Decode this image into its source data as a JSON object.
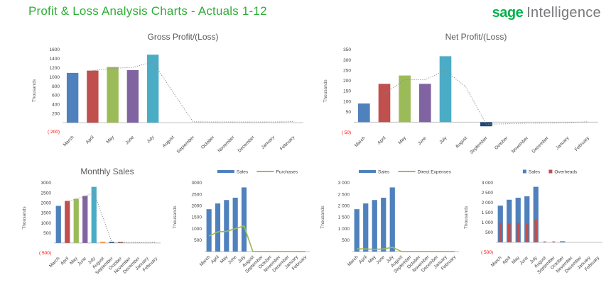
{
  "header": {
    "title": "Profit & Loss Analysis Charts - Actuals 1-12",
    "brand_bold": "sage",
    "brand_light": "Intelligence"
  },
  "colors": {
    "title_green": "#2ead36",
    "logo_green": "#00b14a",
    "logo_gray": "#77787b",
    "axis_line": "#bfbfbf",
    "tick_text": "#404040",
    "negative_text": "#ff0000",
    "trend_dotted": "#8c8c8c"
  },
  "chart_data": [
    {
      "id": "gross-profit-loss",
      "type": "bar",
      "title": "Gross Profit/(Loss)",
      "ylabel": "Thousands",
      "ylim": [
        -200,
        1600
      ],
      "categories": [
        "March",
        "April",
        "May",
        "June",
        "July",
        "August",
        "September",
        "October",
        "November",
        "December",
        "January",
        "February"
      ],
      "y_ticks": [
        [
          200,
          "200"
        ],
        [
          400,
          "400"
        ],
        [
          600,
          "600"
        ],
        [
          800,
          "800"
        ],
        [
          1000,
          "1000"
        ],
        [
          1200,
          "1200"
        ],
        [
          1400,
          "1400"
        ],
        [
          1600,
          "1600"
        ]
      ],
      "y_neg": [
        -200,
        "( 200)"
      ],
      "bar_series": [
        {
          "name": "Gross Profit",
          "colors": [
            "#4F81BD",
            "#C0504D",
            "#9BBB59",
            "#8064A2",
            "#4BACC6"
          ],
          "values": [
            1090,
            1140,
            1220,
            1150,
            1490,
            null,
            null,
            null,
            null,
            null,
            null,
            null
          ]
        }
      ],
      "line_series": [
        {
          "name": "Trend",
          "color": "#8c8c8c",
          "style": "dotted",
          "values": [
            null,
            1140,
            1190,
            1210,
            1330,
            670,
            20,
            15,
            15,
            15,
            15,
            25
          ]
        }
      ],
      "legend": null
    },
    {
      "id": "net-profit-loss",
      "type": "bar",
      "title": "Net Profit/(Loss)",
      "ylabel": "Thousands",
      "ylim": [
        -50,
        350
      ],
      "categories": [
        "March",
        "April",
        "May",
        "June",
        "July",
        "August",
        "September",
        "October",
        "November",
        "December",
        "January",
        "February"
      ],
      "y_ticks": [
        [
          50,
          "50"
        ],
        [
          100,
          "100"
        ],
        [
          150,
          "150"
        ],
        [
          200,
          "200"
        ],
        [
          250,
          "250"
        ],
        [
          300,
          "300"
        ],
        [
          350,
          "350"
        ]
      ],
      "y_neg": [
        -50,
        "( 50)"
      ],
      "bar_series": [
        {
          "name": "Net Profit",
          "colors": [
            "#4F81BD",
            "#C0504D",
            "#9BBB59",
            "#8064A2",
            "#4BACC6",
            null,
            "#1F497D"
          ],
          "values": [
            90,
            185,
            225,
            185,
            318,
            null,
            -20,
            null,
            null,
            null,
            null,
            null
          ]
        }
      ],
      "line_series": [
        {
          "name": "Trend",
          "color": "#8c8c8c",
          "style": "dotted",
          "values": [
            null,
            135,
            205,
            205,
            250,
            170,
            -10,
            -8,
            -5,
            -5,
            -3,
            2
          ]
        }
      ],
      "legend": null
    },
    {
      "id": "monthly-sales",
      "type": "bar",
      "title": "Monthly Sales",
      "ylabel": "Thousands",
      "ylim": [
        -500,
        3000
      ],
      "categories": [
        "March",
        "April",
        "May",
        "June",
        "July",
        "August",
        "September",
        "October",
        "November",
        "December",
        "January",
        "February"
      ],
      "y_ticks": [
        [
          500,
          "500"
        ],
        [
          1000,
          "1000"
        ],
        [
          1500,
          "1500"
        ],
        [
          2000,
          "2000"
        ],
        [
          2500,
          "2500"
        ],
        [
          3000,
          "3000"
        ]
      ],
      "y_neg": [
        -500,
        "( 500)"
      ],
      "bar_series": [
        {
          "name": "Sales",
          "colors": [
            "#4F81BD",
            "#C0504D",
            "#9BBB59",
            "#8064A2",
            "#4BACC6",
            "#F79646",
            "#1F497D",
            "#953735"
          ],
          "values": [
            1850,
            2100,
            2200,
            2350,
            2800,
            60,
            55,
            50,
            null,
            null,
            null,
            null
          ]
        }
      ],
      "line_series": [
        {
          "name": "Trend",
          "color": "#8c8c8c",
          "style": "dotted",
          "values": [
            null,
            2050,
            2200,
            2330,
            2520,
            1270,
            35,
            30,
            30,
            30,
            30,
            30
          ]
        }
      ],
      "legend": null
    },
    {
      "id": "sales-vs-purchases",
      "type": "bar",
      "title": "",
      "ylabel": "Thousands",
      "ylim": [
        0,
        3000
      ],
      "categories": [
        "March",
        "April",
        "May",
        "June",
        "July",
        "August",
        "September",
        "October",
        "November",
        "December",
        "January",
        "February"
      ],
      "y_ticks": [
        [
          500,
          "500"
        ],
        [
          1000,
          "1000"
        ],
        [
          1500,
          "1500"
        ],
        [
          2000,
          "2000"
        ],
        [
          2500,
          "2500"
        ],
        [
          3000,
          "3000"
        ]
      ],
      "y_neg": null,
      "bar_series": [
        {
          "name": "Sales",
          "colors": null,
          "color": "#4F81BD",
          "values": [
            1850,
            2100,
            2250,
            2350,
            2800,
            null,
            null,
            null,
            null,
            null,
            null,
            null
          ]
        }
      ],
      "line_series": [
        {
          "name": "Purchases",
          "color": "#9BBB59",
          "style": "solid",
          "values": [
            680,
            860,
            880,
            1000,
            1120,
            5,
            5,
            5,
            5,
            5,
            5,
            5
          ]
        }
      ],
      "legend": [
        {
          "label": "Sales",
          "swatch": "bar",
          "color": "#4F81BD"
        },
        {
          "label": "Purchases",
          "swatch": "line",
          "color": "#9BBB59"
        }
      ]
    },
    {
      "id": "sales-vs-direct-expenses",
      "type": "bar",
      "title": "",
      "ylabel": "Thousands",
      "ylim": [
        0,
        3000
      ],
      "categories": [
        "March",
        "April",
        "May",
        "June",
        "July",
        "August",
        "September",
        "October",
        "November",
        "December",
        "January",
        "February"
      ],
      "y_ticks": [
        [
          500,
          "500"
        ],
        [
          1000,
          "1 000"
        ],
        [
          1500,
          "1 500"
        ],
        [
          2000,
          "2 000"
        ],
        [
          2500,
          "2 500"
        ],
        [
          3000,
          "3 000"
        ]
      ],
      "y_neg": null,
      "bar_series": [
        {
          "name": "Sales",
          "colors": null,
          "color": "#4F81BD",
          "values": [
            1850,
            2100,
            2250,
            2350,
            2800,
            null,
            null,
            null,
            null,
            null,
            null,
            null
          ]
        }
      ],
      "line_series": [
        {
          "name": "Direct Expenses",
          "color": "#9BBB59",
          "style": "solid",
          "values": [
            120,
            110,
            100,
            110,
            190,
            5,
            5,
            5,
            5,
            5,
            5,
            5
          ]
        }
      ],
      "legend": [
        {
          "label": "Sales",
          "swatch": "bar",
          "color": "#4F81BD"
        },
        {
          "label": "Direct Expenses",
          "swatch": "line",
          "color": "#9BBB59"
        }
      ]
    },
    {
      "id": "sales-vs-overheads",
      "type": "bar",
      "title": "",
      "ylabel": "Thousands",
      "ylim": [
        -500,
        3000
      ],
      "categories": [
        "March",
        "April",
        "May",
        "June",
        "July",
        "August",
        "September",
        "October",
        "November",
        "December",
        "January",
        "February"
      ],
      "y_ticks": [
        [
          500,
          "500"
        ],
        [
          1000,
          "1 000"
        ],
        [
          1500,
          "1 500"
        ],
        [
          2000,
          "2 000"
        ],
        [
          2500,
          "2 500"
        ],
        [
          3000,
          "3 000"
        ]
      ],
      "y_neg": [
        -500,
        "( 500)"
      ],
      "bar_series": [
        {
          "name": "Sales",
          "colors": null,
          "color": "#4F81BD",
          "values": [
            1850,
            2150,
            2250,
            2320,
            2800,
            null,
            null,
            55,
            null,
            null,
            null,
            null
          ]
        },
        {
          "name": "Overheads",
          "colors": null,
          "color": "#C0504D",
          "overlay": true,
          "values": [
            990,
            950,
            990,
            950,
            1140,
            45,
            45,
            null,
            null,
            null,
            null,
            null
          ]
        }
      ],
      "line_series": [],
      "legend": [
        {
          "label": "Sales",
          "swatch": "square",
          "color": "#4F81BD"
        },
        {
          "label": "Overheads",
          "swatch": "square",
          "color": "#C0504D"
        }
      ]
    }
  ]
}
